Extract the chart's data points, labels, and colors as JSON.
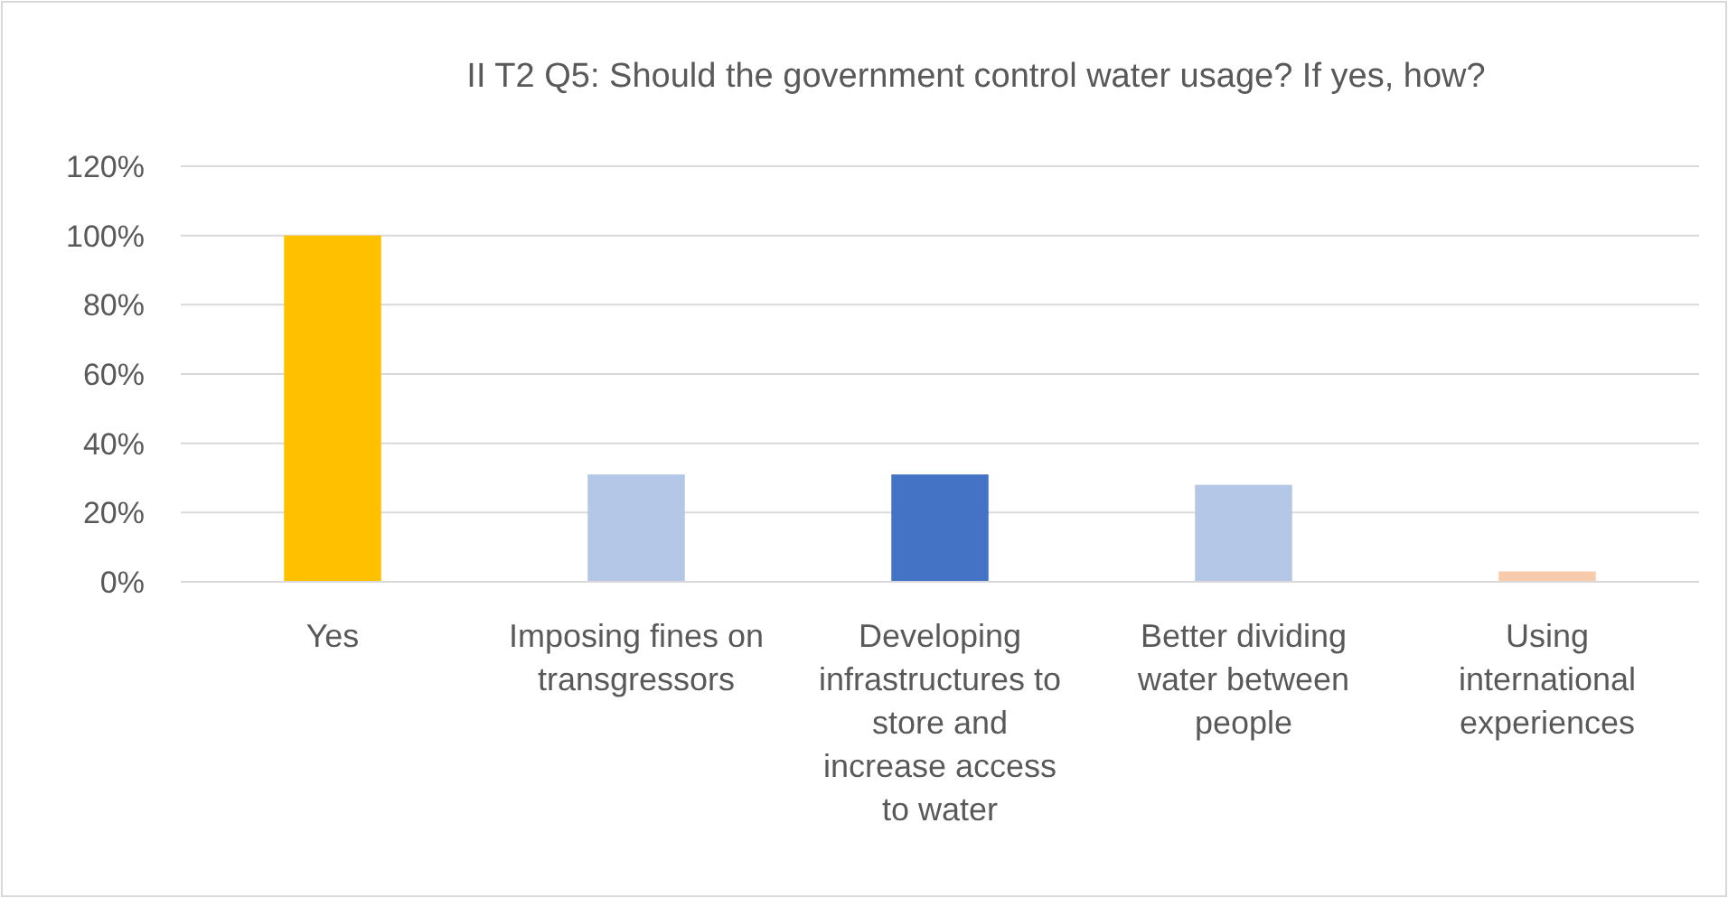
{
  "chart_data": {
    "type": "bar",
    "title": "II T2 Q5: Should the government control water usage? If yes, how?",
    "categories": [
      "Yes",
      "Imposing fines on transgressors",
      "Developing infrastructures to store and increase access to water",
      "Better dividing water between people",
      "Using international experiences"
    ],
    "values": [
      100,
      31,
      31,
      28,
      3
    ],
    "colors": [
      "#ffc000",
      "#b4c7e7",
      "#4472c4",
      "#b4c7e7",
      "#f8cbad"
    ],
    "ylim": [
      0,
      120
    ],
    "yticks": [
      {
        "value": 0,
        "label": "0%"
      },
      {
        "value": 20,
        "label": "20%"
      },
      {
        "value": 40,
        "label": "40%"
      },
      {
        "value": 60,
        "label": "60%"
      },
      {
        "value": 80,
        "label": "80%"
      },
      {
        "value": 100,
        "label": "100%"
      },
      {
        "value": 120,
        "label": "120%"
      }
    ],
    "grid": "y"
  }
}
